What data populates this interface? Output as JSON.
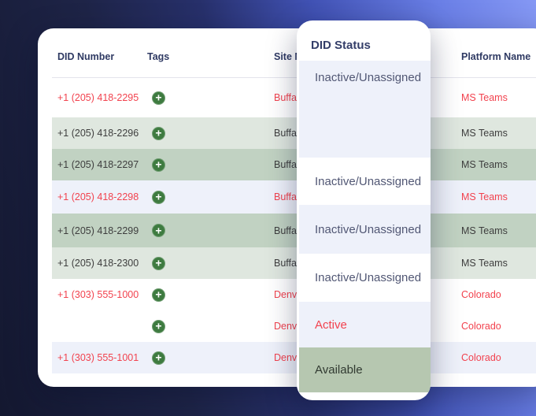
{
  "table": {
    "headers": {
      "did": "DID Number",
      "tags": "Tags",
      "site": "Site N",
      "platform": "Platform Name"
    },
    "tag_button_icon": "plus-circle-icon",
    "rows": [
      {
        "did": "+1 (205) 418-2295",
        "site": "Buffa",
        "platform": "MS Teams",
        "highlight": "none",
        "text_color": "red"
      },
      {
        "did": "+1 (205) 418-2296",
        "site": "Buffa",
        "platform": "MS Teams",
        "highlight": "green-light",
        "text_color": "dark"
      },
      {
        "did": "+1 (205) 418-2297",
        "site": "Buffa",
        "platform": "MS Teams",
        "highlight": "green",
        "text_color": "dark"
      },
      {
        "did": "+1 (205) 418-2298",
        "site": "Buffa",
        "platform": "MS Teams",
        "highlight": "lavender",
        "text_color": "red"
      },
      {
        "did": "+1 (205) 418-2299",
        "site": "Buffa",
        "platform": "MS Teams",
        "highlight": "green",
        "text_color": "dark"
      },
      {
        "did": "+1 (205) 418-2300",
        "site": "Buffa",
        "platform": "MS Teams",
        "highlight": "green-light",
        "text_color": "dark"
      },
      {
        "did": "+1 (303) 555-1000",
        "site": "Denve",
        "platform": "Colorado",
        "highlight": "none",
        "text_color": "red"
      },
      {
        "did": "",
        "site": "Denve",
        "platform": "Colorado",
        "highlight": "none",
        "text_color": "red"
      },
      {
        "did": "+1 (303) 555-1001",
        "site": "Denve",
        "platform": "Colorado",
        "highlight": "lavender",
        "text_color": "red"
      }
    ]
  },
  "overlay": {
    "title": "DID Status",
    "items": [
      {
        "label": "Inactive/Unassigned",
        "bg": "lavender",
        "text_color": "navy"
      },
      {
        "label": "Inactive/Unassigned",
        "bg": "white",
        "text_color": "navy"
      },
      {
        "label": "Inactive/Unassigned",
        "bg": "lavender",
        "text_color": "navy"
      },
      {
        "label": "Inactive/Unassigned",
        "bg": "white",
        "text_color": "navy"
      },
      {
        "label": "Active",
        "bg": "lavender",
        "text_color": "red"
      },
      {
        "label": "Available",
        "bg": "green",
        "text_color": "dark"
      }
    ]
  },
  "colors": {
    "accent_red": "#f2424e",
    "row_green": "#c1d2c2",
    "row_green_light": "#dfe7df",
    "row_lavender": "#eef1fa",
    "overlay_green": "#b6c7b0",
    "header_navy": "#2f3a63",
    "tag_icon_green": "#3e7b40",
    "bg_gradient_dark": "#141830",
    "bg_gradient_light": "#8598f4"
  }
}
